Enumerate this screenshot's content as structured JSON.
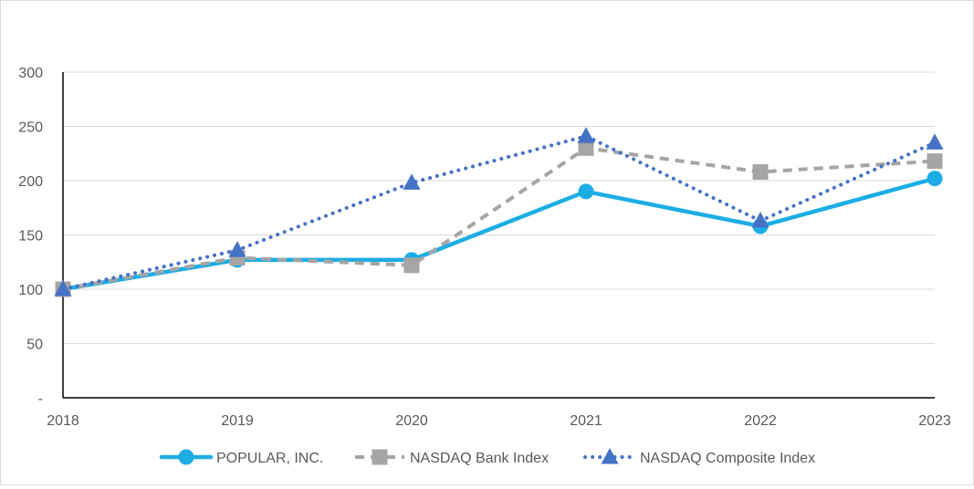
{
  "chart_data": {
    "type": "line",
    "title": "",
    "xlabel": "",
    "ylabel": "",
    "x": [
      "2018",
      "2019",
      "2020",
      "2021",
      "2022",
      "2023"
    ],
    "ylim": [
      0,
      300
    ],
    "yticks": [
      0,
      50,
      100,
      150,
      200,
      250,
      300
    ],
    "ytick_labels": [
      "-",
      "50",
      "100",
      "150",
      "200",
      "250",
      "300"
    ],
    "grid": true,
    "legend_position": "bottom",
    "series": [
      {
        "name": "POPULAR, INC.",
        "values": [
          100,
          127,
          127,
          190,
          158,
          202
        ],
        "color": "#1CADE4",
        "style": "solid",
        "marker": "circle"
      },
      {
        "name": "NASDAQ Bank Index",
        "values": [
          100,
          129,
          122,
          230,
          208,
          218
        ],
        "color": "#A5A5A5",
        "style": "dashed",
        "marker": "square"
      },
      {
        "name": "NASDAQ Composite Index",
        "values": [
          100,
          136,
          198,
          241,
          163,
          235
        ],
        "color": "#4472C4",
        "style": "dotted",
        "marker": "triangle"
      }
    ]
  }
}
